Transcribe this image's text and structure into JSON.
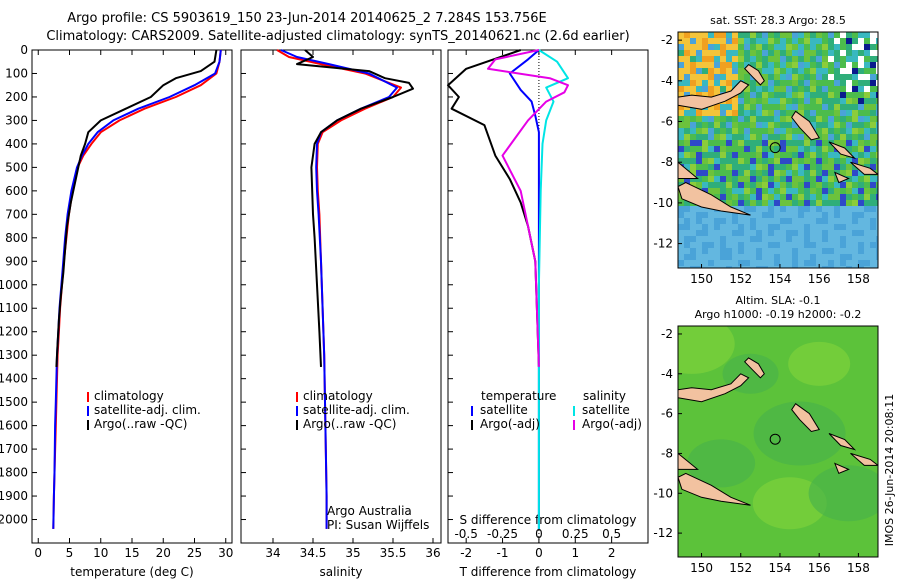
{
  "header": {
    "line1": "Argo profile: CS 5903619_150 23-Jun-2014 20140625_2 7.284S 153.756E",
    "line2": "Climatology: CARS2009. Satellite-adjusted climatology: synTS_20140621.nc (2.6d earlier)"
  },
  "colors": {
    "climatology": "#ff0000",
    "satellite": "#0000ff",
    "argo": "#000000",
    "salinity_satellite": "#00e5e5",
    "salinity_argo": "#e600e6",
    "land": "#f2c2a0"
  },
  "chart_data": [
    {
      "type": "line",
      "id": "temperature",
      "xlabel": "temperature (deg C)",
      "ylabel": "",
      "xlim": [
        -1,
        31
      ],
      "ylim": [
        2100,
        0
      ],
      "xticks": [
        0,
        5,
        10,
        15,
        20,
        25,
        30
      ],
      "yticks": [
        0,
        100,
        200,
        300,
        400,
        500,
        600,
        700,
        800,
        900,
        1000,
        1100,
        1200,
        1300,
        1400,
        1500,
        1600,
        1700,
        1800,
        1900,
        2000
      ],
      "legend": [
        "climatology",
        "satellite-adj. clim.",
        "Argo(..raw -QC)"
      ],
      "series": [
        {
          "key": "climatology",
          "x": [
            29.2,
            29,
            28.5,
            26,
            22,
            17,
            13,
            10,
            8.5,
            7.2,
            6.3,
            5.5,
            4.9,
            4.5,
            4.1,
            3.8,
            3.5,
            3.3,
            3.1,
            2.9,
            2.8,
            2.6,
            2.5,
            2.4
          ],
          "y": [
            0,
            50,
            100,
            150,
            200,
            250,
            300,
            350,
            400,
            450,
            500,
            600,
            700,
            800,
            900,
            1000,
            1100,
            1200,
            1300,
            1500,
            1600,
            1800,
            1900,
            2040
          ]
        },
        {
          "key": "satellite",
          "x": [
            29.2,
            29,
            28.3,
            25,
            21,
            16,
            12,
            9.5,
            8,
            7,
            6.2,
            5.3,
            4.7,
            4.3,
            4,
            3.7,
            3.4,
            3.2,
            3,
            2.8,
            2.7,
            2.6,
            2.5,
            2.4
          ],
          "y": [
            0,
            50,
            100,
            150,
            200,
            250,
            300,
            350,
            400,
            450,
            500,
            600,
            700,
            800,
            900,
            1000,
            1100,
            1200,
            1300,
            1500,
            1600,
            1800,
            1900,
            2040
          ]
        },
        {
          "key": "argo",
          "x": [
            28.5,
            28.2,
            26,
            22,
            20,
            18,
            14,
            10,
            8,
            7.5,
            6.8,
            6,
            5.2,
            4.6,
            4.3,
            4,
            3.6,
            3.3,
            3.1,
            2.9
          ],
          "y": [
            0,
            50,
            90,
            120,
            150,
            200,
            250,
            300,
            350,
            400,
            450,
            550,
            650,
            750,
            850,
            950,
            1050,
            1150,
            1250,
            1350
          ]
        }
      ]
    },
    {
      "type": "line",
      "id": "salinity",
      "xlabel": "salinity",
      "xlim": [
        33.6,
        36.1
      ],
      "ylim": [
        2100,
        0
      ],
      "xticks": [
        34,
        34.5,
        35,
        35.5,
        36
      ],
      "legend": [
        "climatology",
        "satellite-adj. clim.",
        "Argo(..raw -QC)"
      ],
      "annotation": [
        "Argo Australia",
        "PI: Susan Wijffels"
      ],
      "series": [
        {
          "key": "climatology",
          "x": [
            34.05,
            34.2,
            34.6,
            35.15,
            35.6,
            35.5,
            35.15,
            34.85,
            34.62,
            34.56,
            34.55,
            34.56,
            34.58,
            34.6,
            34.62,
            34.64,
            34.65,
            34.66,
            34.67,
            34.67
          ],
          "y": [
            0,
            30,
            60,
            100,
            160,
            200,
            250,
            300,
            350,
            400,
            500,
            600,
            700,
            900,
            1100,
            1300,
            1500,
            1700,
            1900,
            2040
          ]
        },
        {
          "key": "satellite",
          "x": [
            34.1,
            34.3,
            34.7,
            35.2,
            35.55,
            35.45,
            35.1,
            34.8,
            34.6,
            34.55,
            34.54,
            34.55,
            34.57,
            34.6,
            34.62,
            34.64,
            34.65,
            34.66,
            34.67,
            34.67
          ],
          "y": [
            0,
            30,
            60,
            100,
            160,
            200,
            250,
            300,
            350,
            400,
            500,
            600,
            700,
            900,
            1100,
            1300,
            1500,
            1700,
            1900,
            2040
          ]
        },
        {
          "key": "argo",
          "x": [
            34.4,
            34.5,
            34.3,
            35.2,
            35.4,
            35.7,
            35.75,
            35.5,
            35.1,
            34.8,
            34.6,
            34.52,
            34.48,
            34.5,
            34.52,
            34.55,
            34.58,
            34.6
          ],
          "y": [
            0,
            30,
            60,
            90,
            120,
            140,
            165,
            200,
            250,
            300,
            350,
            400,
            500,
            700,
            800,
            1000,
            1200,
            1350
          ]
        }
      ]
    },
    {
      "type": "line",
      "id": "difference",
      "xlabel": "T difference from climatology",
      "xlabel_top": "S difference from climatology",
      "xlim": [
        -2.5,
        3
      ],
      "ylim": [
        2100,
        0
      ],
      "xticks": [
        -2,
        -1,
        0,
        1,
        2
      ],
      "xticks_top": [
        "-0.5",
        "-0.25",
        "0",
        "0.25",
        "0.5"
      ],
      "xticks_top_pos": [
        -2,
        -1,
        0,
        1,
        2
      ],
      "legend_temperature": [
        "temperature",
        "satellite",
        "Argo(-adj)"
      ],
      "legend_salinity": [
        "salinity",
        "satellite",
        "Argo(-adj)"
      ],
      "series": [
        {
          "key": "t_satellite",
          "x": [
            0,
            -0.3,
            -0.8,
            -0.5,
            -0.2,
            -0.1,
            0,
            0,
            0,
            0,
            0
          ],
          "y": [
            0,
            40,
            100,
            170,
            220,
            280,
            350,
            500,
            800,
            1200,
            2040
          ]
        },
        {
          "key": "t_argo",
          "x": [
            -0.5,
            -2,
            -2.5,
            -2.2,
            -2.4,
            -1.5,
            -1.2,
            -0.8,
            -0.5,
            -0.3,
            -0.1,
            0
          ],
          "y": [
            0,
            80,
            150,
            200,
            250,
            320,
            450,
            550,
            650,
            750,
            900,
            1350
          ]
        },
        {
          "key": "s_satellite",
          "x": [
            0,
            0.5,
            0.8,
            0.2,
            0.4,
            0.2,
            0.1,
            0.05,
            0,
            0
          ],
          "y": [
            0,
            50,
            120,
            160,
            220,
            300,
            400,
            600,
            1000,
            2040
          ]
        },
        {
          "key": "s_argo",
          "x": [
            0,
            -1.2,
            -1.4,
            0.3,
            0.8,
            0.7,
            0.2,
            -0.3,
            -1.0,
            -0.5,
            -0.1,
            0
          ],
          "y": [
            0,
            40,
            80,
            120,
            150,
            180,
            220,
            300,
            450,
            600,
            900,
            1350
          ]
        }
      ]
    },
    {
      "type": "heatmap",
      "id": "sst_map",
      "title": "sat. SST: 28.3  Argo: 28.5",
      "xlim": [
        148.8,
        159
      ],
      "ylim": [
        -13.2,
        -1.6
      ],
      "xticks": [
        150,
        152,
        154,
        156,
        158
      ],
      "yticks": [
        -2,
        -4,
        -6,
        -8,
        -10,
        -12
      ],
      "marker": {
        "lon": 153.756,
        "lat": -7.284
      }
    },
    {
      "type": "heatmap",
      "id": "sla_map",
      "title": "Altim. SLA: -0.1",
      "subtitle": "Argo h1000: -0.19  h2000: -0.2",
      "xlim": [
        148.8,
        159
      ],
      "ylim": [
        -13.2,
        -1.6
      ],
      "xticks": [
        150,
        152,
        154,
        156,
        158
      ],
      "yticks": [
        -2,
        -4,
        -6,
        -8,
        -10,
        -12
      ],
      "marker": {
        "lon": 153.756,
        "lat": -7.284
      }
    }
  ],
  "credit": "IMOS 26-Jun-2014 20:08:11"
}
